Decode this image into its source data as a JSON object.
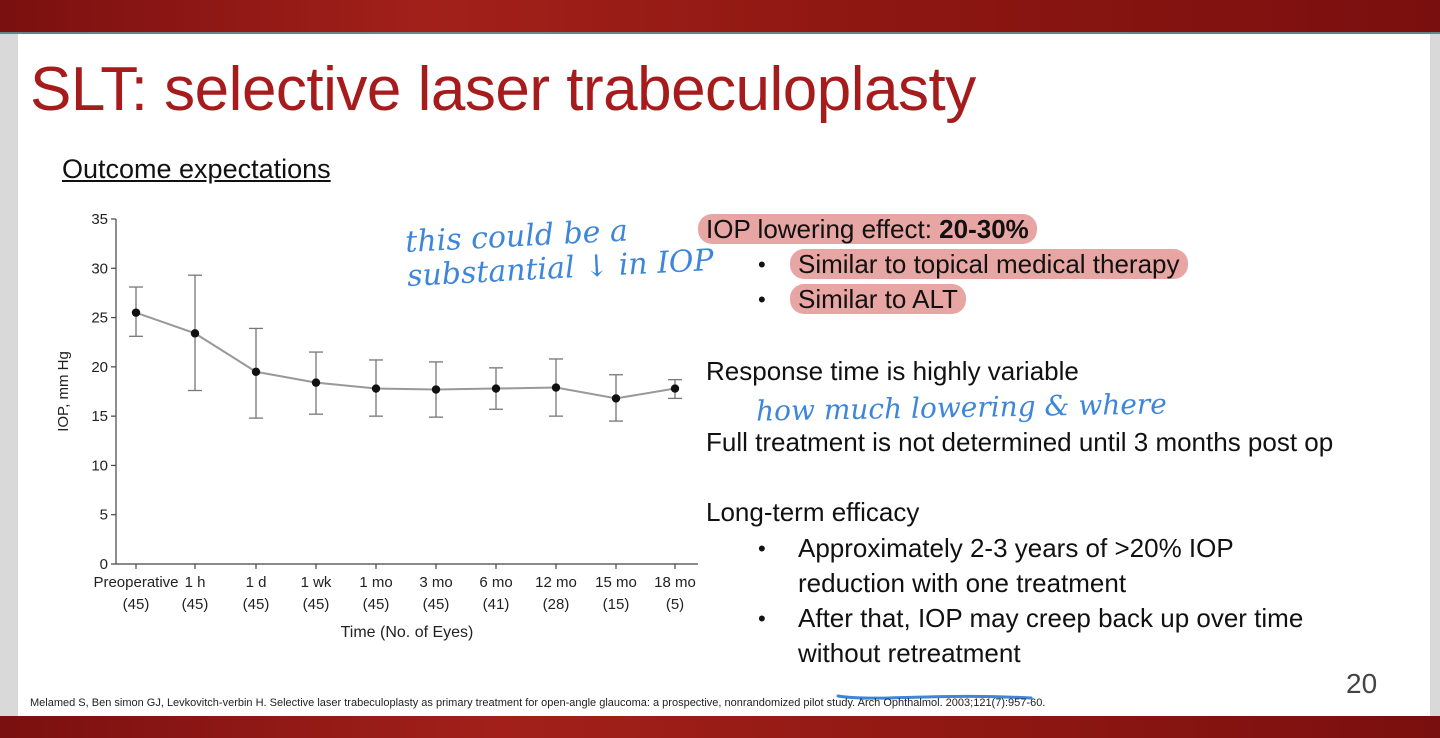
{
  "title": "SLT: selective laser trabeculoplasty",
  "subtitle": "Outcome expectations",
  "handwritten": {
    "note_top_line1": "this could be a",
    "note_top_line2": "substantial ↓ in IOP",
    "note_mid": "how much lowering & where"
  },
  "bullets": {
    "iop_label": "IOP lowering effect: ",
    "iop_value": "20-30%",
    "iop_sub1": "Similar to topical medical therapy",
    "iop_sub2": "Similar to ALT",
    "response": "Response time is highly variable",
    "full_treatment": "Full treatment is not determined until 3 months post op",
    "longterm": "Long-term efficacy",
    "lt_sub1_line1": "Approximately 2-3 years of >20% IOP",
    "lt_sub1_line2": "reduction with one treatment",
    "lt_sub2_line1": "After that, IOP may creep back up over time",
    "lt_sub2_line2_a": "with",
    "lt_sub2_line2_b": "out retreatment"
  },
  "citation": "Melamed S, Ben simon GJ, Levkovitch-verbin H. Selective laser trabeculoplasty as primary treatment for open-angle glaucoma: a prospective, nonrandomized pilot study. Arch Ophthalmol. 2003;121(7):957-60.",
  "page_number": "20",
  "colors": {
    "title": "#a61c1c",
    "highlight": "#e7a6a3",
    "handwriting": "#3d86d9",
    "band": "#8e1712"
  },
  "chart_data": {
    "type": "line",
    "xlabel": "Time (No. of Eyes)",
    "ylabel": "IOP, mm Hg",
    "ylim": [
      0,
      35
    ],
    "yticks": [
      "0",
      "5",
      "10",
      "15",
      "20",
      "25",
      "30",
      "35"
    ],
    "categories": [
      "Preoperative",
      "1 h",
      "1 d",
      "1 wk",
      "1 mo",
      "3 mo",
      "6 mo",
      "12 mo",
      "15 mo",
      "18 mo"
    ],
    "n_labels": [
      "(45)",
      "(45)",
      "(45)",
      "(45)",
      "(45)",
      "(45)",
      "(41)",
      "(28)",
      "(15)",
      "(5)"
    ],
    "values": [
      25.5,
      23.4,
      19.5,
      18.4,
      17.8,
      17.7,
      17.8,
      17.9,
      16.8,
      17.8
    ],
    "err_low": [
      23.1,
      17.6,
      14.8,
      15.2,
      15.0,
      14.9,
      15.7,
      15.0,
      14.5,
      16.8
    ],
    "err_high": [
      28.1,
      29.3,
      23.9,
      21.5,
      20.7,
      20.5,
      19.9,
      20.8,
      19.2,
      18.7
    ],
    "grid": false
  }
}
